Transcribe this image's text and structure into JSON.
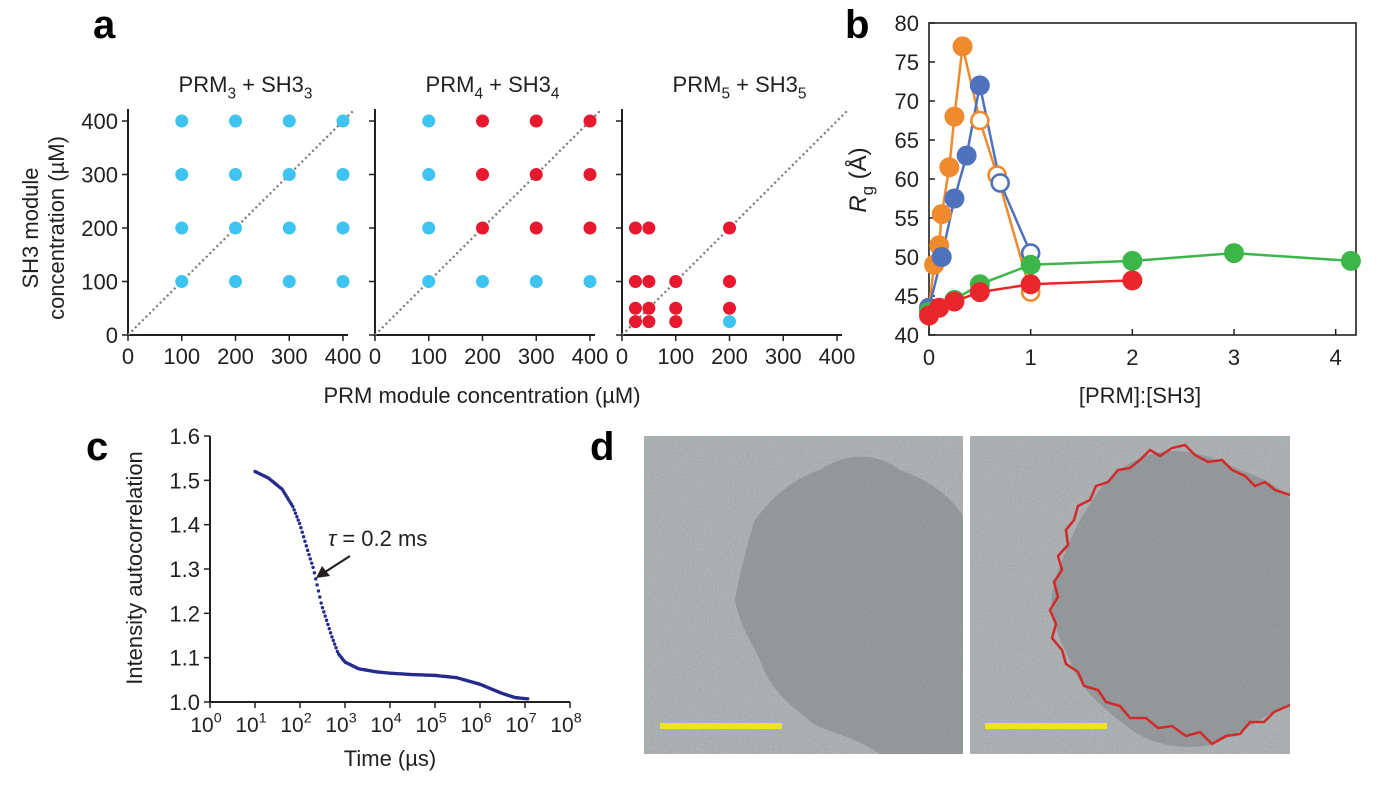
{
  "panel_labels": {
    "a": "a",
    "b": "b",
    "c": "c",
    "d": "d"
  },
  "chart_data": [
    {
      "id": "a",
      "type": "scatter",
      "title": "",
      "xlabel": "PRM module concentration (µM)",
      "ylabel": "SH3 module concentration (µM)",
      "ylabel_lines": [
        "SH3 module",
        "concentration (µM)"
      ],
      "xlim": [
        0,
        400
      ],
      "ylim": [
        0,
        400
      ],
      "x_ticks": [
        0,
        100,
        200,
        300,
        400
      ],
      "y_ticks": [
        0,
        100,
        200,
        300,
        400
      ],
      "diagonal_dotted_line": true,
      "colors": {
        "blue": "#3fc3f0",
        "red": "#e8182e"
      },
      "subplots": [
        {
          "title": {
            "a": "PRM",
            "a_sub": "3",
            "b": " + SH3",
            "b_sub": "3"
          },
          "points": [
            {
              "x": 100,
              "y": 100,
              "c": "blue"
            },
            {
              "x": 200,
              "y": 100,
              "c": "blue"
            },
            {
              "x": 300,
              "y": 100,
              "c": "blue"
            },
            {
              "x": 400,
              "y": 100,
              "c": "blue"
            },
            {
              "x": 100,
              "y": 200,
              "c": "blue"
            },
            {
              "x": 200,
              "y": 200,
              "c": "blue"
            },
            {
              "x": 300,
              "y": 200,
              "c": "blue"
            },
            {
              "x": 400,
              "y": 200,
              "c": "blue"
            },
            {
              "x": 100,
              "y": 300,
              "c": "blue"
            },
            {
              "x": 200,
              "y": 300,
              "c": "blue"
            },
            {
              "x": 300,
              "y": 300,
              "c": "blue"
            },
            {
              "x": 400,
              "y": 300,
              "c": "blue"
            },
            {
              "x": 100,
              "y": 400,
              "c": "blue"
            },
            {
              "x": 200,
              "y": 400,
              "c": "blue"
            },
            {
              "x": 300,
              "y": 400,
              "c": "blue"
            },
            {
              "x": 400,
              "y": 400,
              "c": "blue"
            }
          ]
        },
        {
          "title": {
            "a": "PRM",
            "a_sub": "4",
            "b": " + SH3",
            "b_sub": "4"
          },
          "points": [
            {
              "x": 100,
              "y": 100,
              "c": "blue"
            },
            {
              "x": 200,
              "y": 100,
              "c": "blue"
            },
            {
              "x": 300,
              "y": 100,
              "c": "blue"
            },
            {
              "x": 400,
              "y": 100,
              "c": "blue"
            },
            {
              "x": 100,
              "y": 200,
              "c": "blue"
            },
            {
              "x": 200,
              "y": 200,
              "c": "red"
            },
            {
              "x": 300,
              "y": 200,
              "c": "red"
            },
            {
              "x": 400,
              "y": 200,
              "c": "red"
            },
            {
              "x": 100,
              "y": 300,
              "c": "blue"
            },
            {
              "x": 200,
              "y": 300,
              "c": "red"
            },
            {
              "x": 300,
              "y": 300,
              "c": "red"
            },
            {
              "x": 400,
              "y": 300,
              "c": "red"
            },
            {
              "x": 100,
              "y": 400,
              "c": "blue"
            },
            {
              "x": 200,
              "y": 400,
              "c": "red"
            },
            {
              "x": 300,
              "y": 400,
              "c": "red"
            },
            {
              "x": 400,
              "y": 400,
              "c": "red"
            }
          ]
        },
        {
          "title": {
            "a": "PRM",
            "a_sub": "5",
            "b": " + SH3",
            "b_sub": "5"
          },
          "points": [
            {
              "x": 25,
              "y": 200,
              "c": "red"
            },
            {
              "x": 50,
              "y": 200,
              "c": "red"
            },
            {
              "x": 200,
              "y": 200,
              "c": "red"
            },
            {
              "x": 25,
              "y": 100,
              "c": "red"
            },
            {
              "x": 50,
              "y": 100,
              "c": "red"
            },
            {
              "x": 100,
              "y": 100,
              "c": "red"
            },
            {
              "x": 200,
              "y": 100,
              "c": "red"
            },
            {
              "x": 25,
              "y": 50,
              "c": "red"
            },
            {
              "x": 50,
              "y": 50,
              "c": "red"
            },
            {
              "x": 100,
              "y": 50,
              "c": "red"
            },
            {
              "x": 200,
              "y": 50,
              "c": "red"
            },
            {
              "x": 25,
              "y": 25,
              "c": "red"
            },
            {
              "x": 50,
              "y": 25,
              "c": "red"
            },
            {
              "x": 100,
              "y": 25,
              "c": "red"
            },
            {
              "x": 200,
              "y": 25,
              "c": "blue"
            }
          ]
        }
      ]
    },
    {
      "id": "b",
      "type": "line",
      "xlabel": "[PRM]:[SH3]",
      "ylabel": {
        "main": "R",
        "sub": "g",
        "unit": " (Å)"
      },
      "xlim": [
        0,
        4.2
      ],
      "ylim": [
        40,
        80
      ],
      "x_ticks": [
        0,
        1,
        2,
        3,
        4
      ],
      "y_ticks": [
        40,
        45,
        50,
        55,
        60,
        65,
        70,
        75,
        80
      ],
      "series": [
        {
          "color": "#ef8a2e",
          "style": "filled",
          "x": [
            0,
            0.05,
            0.1,
            0.125,
            0.2,
            0.25,
            0.33
          ],
          "y": [
            43.5,
            49,
            51.5,
            55.5,
            61.5,
            68,
            77
          ]
        },
        {
          "color": "#ef8a2e",
          "style": "open",
          "x": [
            0.33,
            0.5,
            0.67,
            1.0
          ],
          "y": [
            77,
            67.5,
            60.5,
            45.5
          ]
        },
        {
          "color": "#4f72bd",
          "style": "filled",
          "x": [
            0,
            0.125,
            0.25,
            0.37,
            0.5
          ],
          "y": [
            43.5,
            50,
            57.5,
            63,
            72
          ]
        },
        {
          "color": "#4f72bd",
          "style": "open",
          "x": [
            0.5,
            0.7,
            1.0
          ],
          "y": [
            72,
            59.5,
            50.5
          ]
        },
        {
          "color": "#3db649",
          "style": "filled",
          "x": [
            0,
            0.25,
            0.5,
            1,
            2,
            3,
            4.15
          ],
          "y": [
            43,
            44.5,
            46.5,
            49,
            49.5,
            50.5,
            49.5
          ]
        },
        {
          "color": "#e8262b",
          "style": "filled",
          "x": [
            0,
            0.1,
            0.25,
            0.5,
            1,
            2
          ],
          "y": [
            42.5,
            43.5,
            44.3,
            45.5,
            46.5,
            47
          ]
        }
      ]
    },
    {
      "id": "c",
      "type": "scatter",
      "xlabel": "Time (µs)",
      "ylabel": "Intensity autocorrelation",
      "xscale": "log",
      "xlim": [
        1,
        100000000
      ],
      "ylim": [
        1.0,
        1.6
      ],
      "x_ticks": [
        "10",
        "10",
        "10",
        "10",
        "10",
        "10",
        "10",
        "10",
        "10"
      ],
      "x_tick_exps": [
        "0",
        "1",
        "2",
        "3",
        "4",
        "5",
        "6",
        "7",
        "8"
      ],
      "y_ticks": [
        "1.0",
        "1.1",
        "1.2",
        "1.3",
        "1.4",
        "1.5",
        "1.6"
      ],
      "annotation": {
        "symbol": "τ",
        "text": " = 0.2 ms"
      },
      "color": "#252a8c",
      "curve_x": [
        10,
        20,
        40,
        70,
        100,
        150,
        200,
        300,
        500,
        700,
        1000,
        2000,
        5000,
        10000,
        30000,
        100000,
        300000,
        1000000,
        3000000,
        6000000,
        12000000
      ],
      "curve_y": [
        1.52,
        1.505,
        1.48,
        1.44,
        1.4,
        1.34,
        1.3,
        1.22,
        1.15,
        1.11,
        1.09,
        1.075,
        1.068,
        1.065,
        1.062,
        1.06,
        1.055,
        1.04,
        1.02,
        1.01,
        1.007
      ]
    }
  ],
  "panel_d": {
    "scale_bar_color": "#ede31f",
    "outline_color": "#d02a2a"
  }
}
